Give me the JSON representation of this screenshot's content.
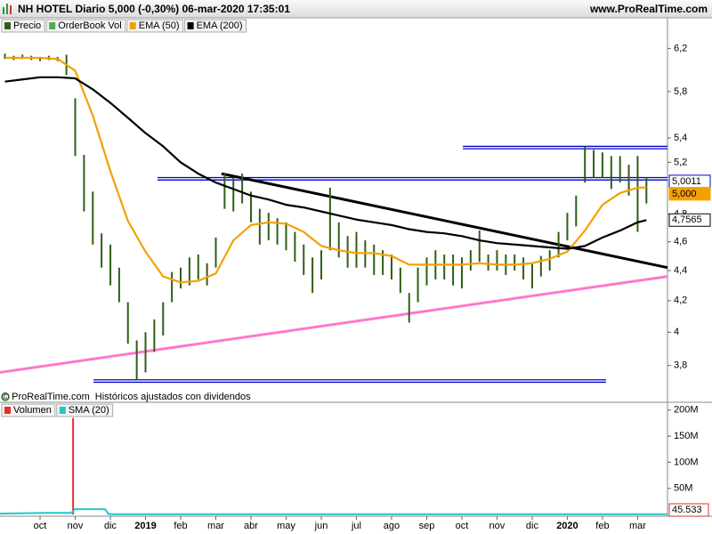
{
  "header": {
    "title": "NH HOTEL Diario 5,000 (-0,30%) 06-mar-2020 17:35:01",
    "site": "www.ProRealTime.com"
  },
  "chart_data": [
    {
      "type": "ohlc",
      "credit": "© ProRealTime.com",
      "annotation": "Históricos ajustados con dividendos",
      "xlim": [
        2018.655,
        2020.2375
      ],
      "ylim": [
        3.6,
        6.5
      ],
      "log_scale": true,
      "grid": false,
      "yticks": [
        {
          "value": 6.2,
          "label": "6,2"
        },
        {
          "value": 5.8,
          "label": "5,8"
        },
        {
          "value": 5.4,
          "label": "5,4"
        },
        {
          "value": 5.2,
          "label": "5,2"
        },
        {
          "value": 4.8,
          "label": "4,8"
        },
        {
          "value": 4.6,
          "label": "4,6"
        },
        {
          "value": 4.4,
          "label": "4,4"
        },
        {
          "value": 4.2,
          "label": "4,2"
        },
        4,
        {
          "value": 3.8,
          "label": "3,8"
        }
      ],
      "series": [
        {
          "name": "Precio",
          "color": "#2f5f14",
          "x": [
            2018.6667,
            2018.6875,
            2018.7083,
            2018.7292,
            2018.75,
            2018.7708,
            2018.7917,
            2018.8125,
            2018.8333,
            2018.8542,
            2018.875,
            2018.8958,
            2018.9167,
            2018.9375,
            2018.9583,
            2018.9792,
            2019,
            2019.0208,
            2019.0417,
            2019.0625,
            2019.0833,
            2019.1042,
            2019.125,
            2019.1458,
            2019.1667,
            2019.1875,
            2019.2083,
            2019.2292,
            2019.25,
            2019.2708,
            2019.2917,
            2019.3125,
            2019.3333,
            2019.3542,
            2019.375,
            2019.3958,
            2019.4167,
            2019.4375,
            2019.4583,
            2019.4792,
            2019.5,
            2019.5208,
            2019.5417,
            2019.5625,
            2019.5833,
            2019.6042,
            2019.625,
            2019.6458,
            2019.6667,
            2019.6875,
            2019.7083,
            2019.7292,
            2019.75,
            2019.7708,
            2019.7917,
            2019.8125,
            2019.8333,
            2019.8542,
            2019.875,
            2019.8958,
            2019.9167,
            2019.9375,
            2019.9583,
            2019.9792,
            2020,
            2020.0208,
            2020.0417,
            2020.0625,
            2020.0833,
            2020.1042,
            2020.125,
            2020.1458,
            2020.1667,
            2020.1875
          ],
          "high": [
            6.15,
            6.13,
            6.14,
            6.13,
            6.12,
            6.13,
            6.12,
            6.14,
            5.74,
            5.26,
            4.97,
            4.66,
            4.58,
            4.42,
            4.19,
            3.95,
            4.0,
            4.08,
            4.19,
            4.39,
            4.42,
            4.49,
            4.51,
            4.45,
            4.63,
            5.11,
            5.08,
            5.11,
            4.97,
            4.84,
            4.81,
            4.77,
            4.74,
            4.67,
            4.58,
            4.49,
            4.54,
            5.0,
            4.74,
            4.64,
            4.67,
            4.61,
            4.58,
            4.54,
            4.51,
            4.42,
            4.25,
            4.42,
            4.49,
            4.54,
            4.51,
            4.51,
            4.49,
            4.54,
            4.68,
            4.51,
            4.54,
            4.51,
            4.51,
            4.49,
            4.45,
            4.5,
            4.54,
            4.67,
            4.81,
            4.94,
            5.33,
            5.3,
            5.28,
            5.25,
            5.25,
            5.18,
            5.25,
            5.08
          ],
          "low": [
            6.1,
            6.09,
            6.1,
            6.09,
            6.08,
            6.09,
            6.08,
            5.95,
            5.25,
            4.82,
            4.58,
            4.42,
            4.3,
            4.19,
            3.93,
            3.72,
            3.76,
            3.88,
            3.98,
            4.19,
            4.28,
            4.3,
            4.34,
            4.3,
            4.42,
            4.84,
            4.82,
            4.88,
            4.74,
            4.58,
            4.61,
            4.58,
            4.54,
            4.46,
            4.37,
            4.25,
            4.34,
            4.54,
            4.49,
            4.42,
            4.42,
            4.42,
            4.37,
            4.37,
            4.34,
            4.25,
            4.06,
            4.19,
            4.3,
            4.34,
            4.34,
            4.3,
            4.28,
            4.4,
            4.46,
            4.4,
            4.4,
            4.37,
            4.4,
            4.34,
            4.28,
            4.36,
            4.4,
            4.49,
            4.61,
            4.71,
            5.04,
            5.08,
            5.08,
            4.99,
            5.04,
            4.94,
            4.67,
            4.88
          ]
        },
        {
          "name": "OrderBook Vol",
          "color": "#4caf50"
        },
        {
          "name": "EMA (50)",
          "color": "#f5a000",
          "x": [
            2018.6667,
            2018.7083,
            2018.75,
            2018.7917,
            2018.8333,
            2018.875,
            2018.9167,
            2018.9583,
            2019,
            2019.0417,
            2019.0833,
            2019.125,
            2019.1667,
            2019.2083,
            2019.25,
            2019.2917,
            2019.3333,
            2019.375,
            2019.4167,
            2019.4583,
            2019.5,
            2019.5417,
            2019.5833,
            2019.625,
            2019.6667,
            2019.7083,
            2019.75,
            2019.7917,
            2019.8333,
            2019.875,
            2019.9167,
            2019.9583,
            2020,
            2020.0417,
            2020.0833,
            2020.125,
            2020.1667,
            2020.1875
          ],
          "values": [
            6.11,
            6.11,
            6.11,
            6.1,
            5.99,
            5.59,
            5.13,
            4.75,
            4.53,
            4.36,
            4.32,
            4.33,
            4.38,
            4.61,
            4.72,
            4.74,
            4.73,
            4.67,
            4.57,
            4.54,
            4.52,
            4.52,
            4.5,
            4.44,
            4.44,
            4.44,
            4.44,
            4.45,
            4.44,
            4.44,
            4.45,
            4.48,
            4.53,
            4.68,
            4.87,
            4.96,
            5.0,
            5.0011
          ]
        },
        {
          "name": "EMA (200)",
          "color": "#000000",
          "x": [
            2018.6667,
            2018.7083,
            2018.75,
            2018.7917,
            2018.8333,
            2018.875,
            2018.9167,
            2018.9583,
            2019,
            2019.0417,
            2019.0833,
            2019.125,
            2019.1667,
            2019.2083,
            2019.25,
            2019.2917,
            2019.3333,
            2019.375,
            2019.4167,
            2019.4583,
            2019.5,
            2019.5417,
            2019.5833,
            2019.625,
            2019.6667,
            2019.7083,
            2019.75,
            2019.7917,
            2019.8333,
            2019.875,
            2019.9167,
            2019.9583,
            2020,
            2020.0417,
            2020.0833,
            2020.125,
            2020.1667,
            2020.1875
          ],
          "values": [
            5.89,
            5.91,
            5.93,
            5.93,
            5.92,
            5.82,
            5.7,
            5.57,
            5.44,
            5.33,
            5.2,
            5.11,
            5.04,
            4.99,
            4.94,
            4.91,
            4.87,
            4.85,
            4.82,
            4.79,
            4.76,
            4.74,
            4.72,
            4.69,
            4.67,
            4.66,
            4.64,
            4.61,
            4.59,
            4.58,
            4.57,
            4.56,
            4.55,
            4.57,
            4.63,
            4.68,
            4.74,
            4.7565
          ]
        }
      ],
      "lines": [
        {
          "x": [
            2019.0283,
            2020.2375
          ],
          "values": [
            5.07,
            5.07
          ],
          "color": "#0000cc",
          "double": true
        },
        {
          "x": [
            2019.7525,
            2020.2375
          ],
          "values": [
            5.32,
            5.32
          ],
          "color": "#0000cc",
          "double": true
        },
        {
          "x": [
            2018.8767,
            2020.0917
          ],
          "values": [
            3.71,
            3.71
          ],
          "color": "#0000cc",
          "double": true
        },
        {
          "x": [
            2019.18,
            2020.2375
          ],
          "values": [
            5.11,
            4.42
          ],
          "color": "#000000",
          "double": false
        },
        {
          "x": [
            2018.655,
            2020.2375
          ],
          "values": [
            3.76,
            4.36
          ],
          "color": "#ff77cc",
          "double": false
        }
      ],
      "last_labels": [
        {
          "value": 5.0011,
          "label": "5,0011",
          "fill": "#ffffff",
          "stroke": "#0000cc",
          "text_color": "#f5a000"
        },
        {
          "value": 5,
          "label": "5,000",
          "fill": "#f5a000",
          "stroke": "#f5a000",
          "text_color": "#000000"
        },
        {
          "value": 4.7565,
          "label": "4,7565",
          "fill": "#ffffff",
          "stroke": "#000000",
          "text_color": "#000000"
        }
      ]
    },
    {
      "type": "bar",
      "xlim": [
        2018.655,
        2020.2375
      ],
      "ylim": [
        0,
        215000000
      ],
      "yticks": [
        {
          "value": 200000000,
          "label": "200M"
        },
        {
          "value": 150000000,
          "label": "150M"
        },
        {
          "value": 100000000,
          "label": "100M"
        },
        {
          "value": 50000000,
          "label": "50M"
        }
      ],
      "xticks": [
        {
          "value": 2018.75,
          "label": "oct"
        },
        {
          "value": 2018.8333,
          "label": "nov"
        },
        {
          "value": 2018.9167,
          "label": "dic"
        },
        2019,
        {
          "value": 2019.0833,
          "label": "feb"
        },
        {
          "value": 2019.1667,
          "label": "mar"
        },
        {
          "value": 2019.25,
          "label": "abr"
        },
        {
          "value": 2019.3333,
          "label": "may"
        },
        {
          "value": 2019.4167,
          "label": "jun"
        },
        {
          "value": 2019.5,
          "label": "jul"
        },
        {
          "value": 2019.5833,
          "label": "ago"
        },
        {
          "value": 2019.6667,
          "label": "sep"
        },
        {
          "value": 2019.75,
          "label": "oct"
        },
        {
          "value": 2019.8333,
          "label": "nov"
        },
        {
          "value": 2019.9167,
          "label": "dic"
        },
        2020,
        {
          "value": 2020.0833,
          "label": "feb"
        },
        {
          "value": 2020.1667,
          "label": "mar"
        }
      ],
      "series": [
        {
          "name": "Volumen",
          "color": "#e03030",
          "x": [
            2018.8283
          ],
          "values": [
            185000000
          ]
        },
        {
          "name": "SMA (20)",
          "color": "#20c8c8",
          "x": [
            2018.655,
            2018.7667,
            2018.8242,
            2018.8325,
            2018.9042,
            2018.9125,
            2020.2375
          ],
          "values": [
            1500000,
            3000000,
            3000000,
            10000000,
            10000000,
            500000,
            500000
          ]
        }
      ],
      "last_label": {
        "label": "45.533",
        "color": "#e03030"
      }
    }
  ]
}
